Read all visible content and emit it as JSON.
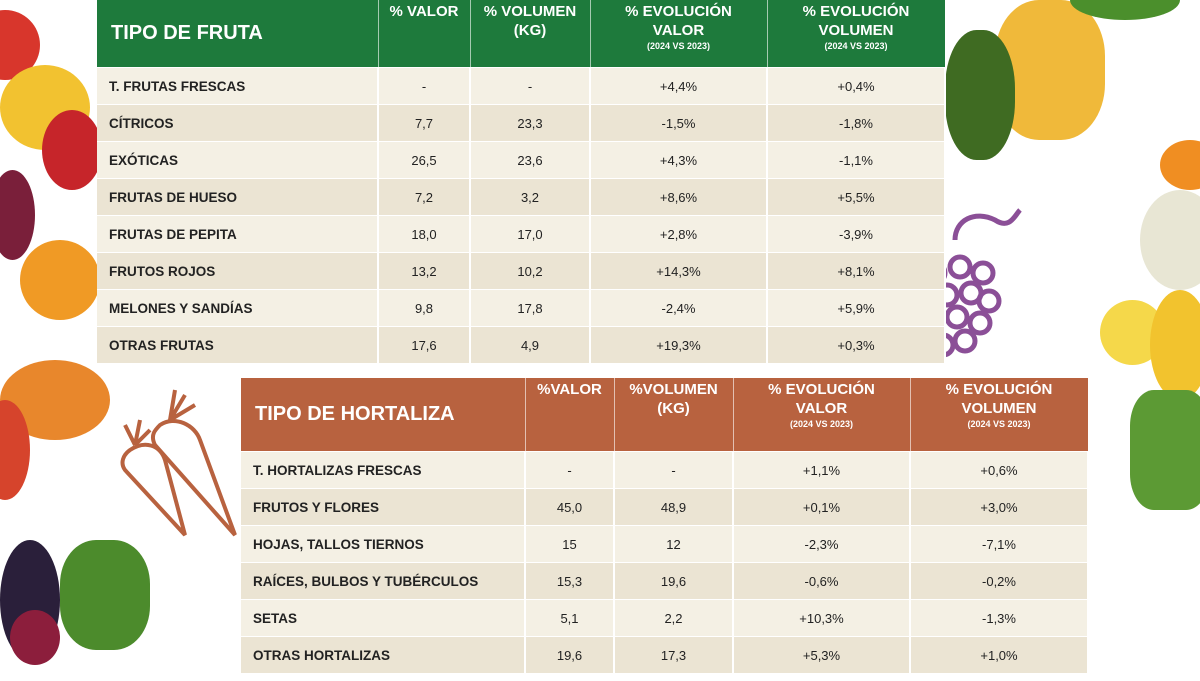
{
  "fruit_table": {
    "headers": [
      "TIPO DE FRUTA",
      "% VALOR",
      "% VOLUMEN",
      "% EVOLUCIÓN",
      "% EVOLUCIÓN"
    ],
    "headers_line2": [
      "",
      "",
      "(KG)",
      "VALOR",
      "VOLUMEN"
    ],
    "headers_line3": [
      "",
      "",
      "",
      "(2024 VS 2023)",
      "(2024 VS 2023)"
    ],
    "rows": [
      [
        "T. FRUTAS FRESCAS",
        "-",
        "-",
        "+4,4%",
        "+0,4%"
      ],
      [
        "CÍTRICOS",
        "7,7",
        "23,3",
        "-1,5%",
        "-1,8%"
      ],
      [
        "EXÓTICAS",
        "26,5",
        "23,6",
        "+4,3%",
        "-1,1%"
      ],
      [
        "FRUTAS DE HUESO",
        "7,2",
        "3,2",
        "+8,6%",
        "+5,5%"
      ],
      [
        "FRUTAS DE PEPITA",
        "18,0",
        "17,0",
        "+2,8%",
        "-3,9%"
      ],
      [
        "FRUTOS ROJOS",
        "13,2",
        "10,2",
        "+14,3%",
        "+8,1%"
      ],
      [
        "MELONES Y SANDÍAS",
        "9,8",
        "17,8",
        "-2,4%",
        "+5,9%"
      ],
      [
        "OTRAS FRUTAS",
        "17,6",
        "4,9",
        "+19,3%",
        "+0,3%"
      ]
    ],
    "header_color": "#1e7a3c"
  },
  "veg_table": {
    "headers": [
      "TIPO DE HORTALIZA",
      "%VALOR",
      "%VOLUMEN",
      "% EVOLUCIÓN",
      "% EVOLUCIÓN"
    ],
    "headers_line2": [
      "",
      "",
      "(KG)",
      "VALOR",
      "VOLUMEN"
    ],
    "headers_line3": [
      "",
      "",
      "",
      "(2024 VS 2023)",
      "(2024 VS 2023)"
    ],
    "rows": [
      [
        "T. HORTALIZAS FRESCAS",
        "-",
        "-",
        "+1,1%",
        "+0,6%"
      ],
      [
        "FRUTOS Y FLORES",
        "45,0",
        "48,9",
        "+0,1%",
        "+3,0%"
      ],
      [
        "HOJAS, TALLOS TIERNOS",
        "15",
        "12",
        "-2,3%",
        "-7,1%"
      ],
      [
        "RAÍCES, BULBOS Y TUBÉRCULOS",
        "15,3",
        "19,6",
        "-0,6%",
        "-0,2%"
      ],
      [
        "SETAS",
        "5,1",
        "2,2",
        "+10,3%",
        "-1,3%"
      ],
      [
        "OTRAS HORTALIZAS",
        "19,6",
        "17,3",
        "+5,3%",
        "+1,0%"
      ]
    ],
    "header_color": "#b8623f"
  },
  "icons": [
    "grape-icon",
    "carrot-icon"
  ]
}
